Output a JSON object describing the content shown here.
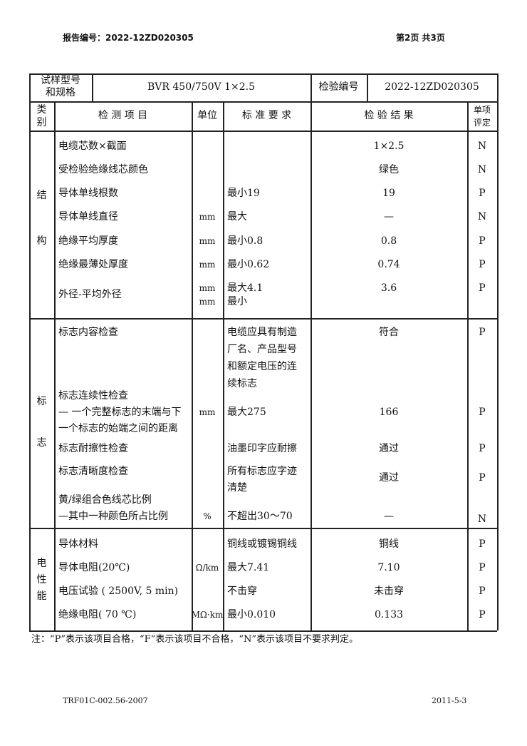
{
  "page_header": {
    "report_no": "报告编号：2022-12ZD020305",
    "page": "第2页  共3页"
  },
  "sample": {
    "label_lines": [
      "试样型号",
      "和规格"
    ],
    "value": "BVR 450/750V 1×2.5",
    "inspection_no_label": "检验编号",
    "inspection_no": "2022-12ZD020305"
  },
  "columns": {
    "category": [
      "类",
      "别"
    ],
    "item": "检 测 项 目",
    "unit": "单位",
    "standard": "标 准 要 求",
    "result": "检 验 结 果",
    "verdict": [
      "单项",
      "评定"
    ]
  },
  "categories": [
    {
      "name": [
        "结",
        "构"
      ]
    },
    {
      "name": [
        "标",
        "志"
      ]
    },
    {
      "name": [
        "电",
        "性",
        "能"
      ]
    }
  ],
  "rows": [
    {
      "item": [
        "电缆芯数×截面"
      ],
      "unit": [],
      "standard": [],
      "result": "1×2.5",
      "verdict": "N"
    },
    {
      "item": [
        "受检验绝缘线芯颜色"
      ],
      "unit": [],
      "standard": [],
      "result": "绿色",
      "verdict": "N"
    },
    {
      "item": [
        "导体单线根数"
      ],
      "unit": [],
      "standard": [
        "最小19"
      ],
      "result": "19",
      "verdict": "P"
    },
    {
      "item": [
        "导体单线直径"
      ],
      "unit": [
        "mm"
      ],
      "standard": [
        "最大"
      ],
      "result": "—",
      "verdict": "N"
    },
    {
      "item": [
        "绝缘平均厚度"
      ],
      "unit": [
        "mm"
      ],
      "standard": [
        "最小0.8"
      ],
      "result": "0.8",
      "verdict": "P"
    },
    {
      "item": [
        "绝缘最薄处厚度"
      ],
      "unit": [
        "mm"
      ],
      "standard": [
        "最小0.62"
      ],
      "result": "0.74",
      "verdict": "P"
    },
    {
      "item": [
        "外径-平均外径"
      ],
      "unit": [
        "mm",
        "mm"
      ],
      "standard": [
        "最大4.1",
        "最小"
      ],
      "result": "3.6",
      "verdict": "P"
    },
    {
      "item": [
        "标志内容检查"
      ],
      "unit": [],
      "standard": [
        "电缆应具有制造",
        "厂名、产品型号",
        "和额定电压的连",
        "续标志"
      ],
      "result": "符合",
      "verdict": "P"
    },
    {
      "item": [
        "标志连续性检查",
        "— 一个完整标志的末端与下",
        "一个标志的始端之间的距离"
      ],
      "unit": [
        "mm"
      ],
      "standard": [
        "最大275"
      ],
      "result": "166",
      "verdict": "P"
    },
    {
      "item": [
        "标志耐擦性检查"
      ],
      "unit": [],
      "standard": [
        "油墨印字应耐擦"
      ],
      "result": "通过",
      "verdict": "P"
    },
    {
      "item": [
        "标志清晰度检查"
      ],
      "unit": [],
      "standard": [
        "所有标志应字迹",
        "清楚"
      ],
      "result": "通过",
      "verdict": "P"
    },
    {
      "item": [
        "黄/绿组合色线芯比例",
        "—其中一种颜色所占比例"
      ],
      "unit": [
        "%"
      ],
      "standard": [
        "不超出30～70"
      ],
      "result": "—",
      "verdict": "N"
    },
    {
      "item": [
        "导体材料"
      ],
      "unit": [],
      "standard": [
        "铜线或镀锡铜线"
      ],
      "result": "铜线",
      "verdict": "P"
    },
    {
      "item": [
        "导体电阻(20℃)"
      ],
      "unit": [
        "Ω/km"
      ],
      "standard": [
        "最大7.41"
      ],
      "result": "7.10",
      "verdict": "P"
    },
    {
      "item": [
        "电压试验 ( 2500V, 5 min)"
      ],
      "unit": [],
      "standard": [
        "不击穿"
      ],
      "result": "未击穿",
      "verdict": "P"
    },
    {
      "item": [
        "绝缘电阻( 70 ℃)"
      ],
      "unit": [
        "MΩ·km"
      ],
      "standard": [
        "最小0.010"
      ],
      "result": "0.133",
      "verdict": "P"
    }
  ],
  "note": "注：“P”表示该项目合格，“F”表示该项目不合格，“N”表示该项目不要求判定。",
  "footer": {
    "form_no": "TRF01C-002.56-2007",
    "date": "2011-5-3"
  }
}
